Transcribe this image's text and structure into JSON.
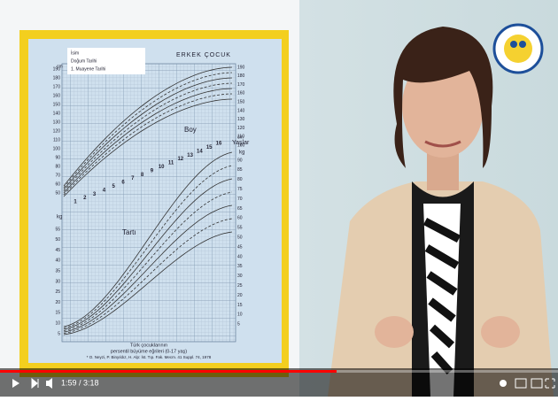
{
  "chart_poster": {
    "form_fields": [
      "İsim",
      "Doğum Tarihi",
      "1. Muayene Tarihi"
    ],
    "title": "ERKEK ÇOCUK",
    "height_label": "Boy",
    "weight_label": "Tartı",
    "ages_label": "Yaşlar",
    "cm_unit": "cm",
    "kg_unit": "kg",
    "left_cm_ticks": [
      190,
      180,
      170,
      160,
      150,
      140,
      130,
      120,
      110,
      100,
      90,
      80,
      70,
      60,
      50
    ],
    "left_kg_ticks": [
      55,
      50,
      45,
      40,
      35,
      30,
      25,
      20,
      15,
      10,
      5
    ],
    "right_cm_ticks": [
      190,
      180,
      170,
      160,
      150,
      140,
      130,
      120,
      110,
      100
    ],
    "right_kg_ticks": [
      90,
      85,
      80,
      75,
      70,
      65,
      60,
      55,
      50,
      45,
      40,
      35,
      30,
      25,
      20,
      15,
      10,
      5
    ],
    "ages": [
      1,
      2,
      3,
      4,
      5,
      6,
      7,
      8,
      9,
      10,
      11,
      12,
      13,
      14,
      15,
      16
    ],
    "caption": [
      "Türk çocuklarının",
      "persentil büyüme eğrileri (0-17 yaş)",
      "* O. Neyzi, P. Binyıldız, H. Alp: İst. Tıp. Fak. Mecm. 41 Suppl. 74, 1978"
    ]
  },
  "player": {
    "time": "1:59 / 3:18"
  }
}
